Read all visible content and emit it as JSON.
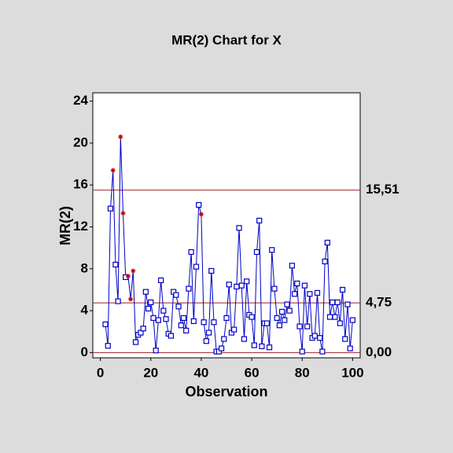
{
  "chart_data": {
    "type": "control",
    "title": "MR(2) Chart for X",
    "x_label": "Observation",
    "y_label": "MR(2)",
    "x": [
      2,
      3,
      4,
      5,
      6,
      7,
      8,
      9,
      10,
      11,
      12,
      13,
      14,
      15,
      16,
      17,
      18,
      19,
      20,
      21,
      22,
      23,
      24,
      25,
      26,
      27,
      28,
      29,
      30,
      31,
      32,
      33,
      34,
      35,
      36,
      37,
      38,
      39,
      40,
      41,
      42,
      43,
      44,
      45,
      46,
      47,
      48,
      49,
      50,
      51,
      52,
      53,
      54,
      55,
      56,
      57,
      58,
      59,
      60,
      61,
      62,
      63,
      64,
      65,
      66,
      67,
      68,
      69,
      70,
      71,
      72,
      73,
      74,
      75,
      76,
      77,
      78,
      79,
      80,
      81,
      82,
      83,
      84,
      85,
      86,
      87,
      88,
      89,
      90,
      91,
      92,
      93,
      94,
      95,
      96,
      97,
      98,
      99,
      100
    ],
    "values": [
      2.7,
      0.65,
      13.75,
      17.4,
      8.4,
      4.9,
      20.6,
      13.3,
      7.2,
      7.3,
      5.1,
      7.8,
      1.0,
      1.7,
      1.9,
      2.3,
      5.8,
      4.2,
      4.8,
      3.3,
      0.2,
      3.1,
      6.9,
      4.0,
      3.2,
      1.8,
      1.6,
      5.8,
      5.5,
      4.4,
      2.6,
      3.3,
      2.1,
      6.1,
      9.6,
      3.0,
      8.2,
      14.1,
      13.2,
      2.9,
      1.1,
      1.9,
      7.8,
      2.9,
      0.1,
      0.1,
      0.4,
      1.3,
      3.3,
      6.5,
      1.9,
      2.2,
      6.3,
      11.9,
      6.4,
      1.3,
      6.8,
      3.6,
      3.4,
      0.7,
      9.6,
      12.6,
      0.6,
      2.8,
      2.8,
      0.5,
      9.8,
      6.1,
      3.3,
      2.6,
      3.9,
      3.1,
      4.6,
      4.0,
      8.3,
      5.6,
      6.6,
      2.5,
      0.1,
      6.4,
      2.5,
      5.6,
      1.4,
      1.6,
      5.7,
      1.4,
      0.1,
      8.7,
      10.5,
      3.4,
      4.8,
      3.4,
      4.8,
      2.8,
      6.0,
      1.3,
      4.6,
      0.4,
      3.1
    ],
    "flagged_x": [
      5,
      8,
      9,
      11,
      12,
      13,
      40
    ],
    "color": "#0000c8",
    "flag_color": "#c80000",
    "control_color": "#a01e28",
    "control_lines": [
      {
        "value": 15.51,
        "label": "15,51"
      },
      {
        "value": 4.75,
        "label": "4,75"
      },
      {
        "value": 0,
        "label": "0,00"
      }
    ],
    "xlim": [
      -3,
      103
    ],
    "ylim": [
      -0.5,
      24.8
    ],
    "xticks": [
      0,
      20,
      40,
      60,
      80,
      100
    ],
    "yticks": [
      0,
      4,
      8,
      12,
      16,
      20,
      24
    ]
  }
}
